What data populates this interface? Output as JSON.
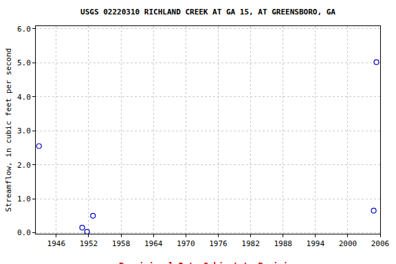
{
  "chart_data": {
    "type": "scatter",
    "title": "USGS 02220310 RICHLAND CREEK AT GA 15, AT GREENSBORO, GA",
    "y_label": "Streamflow, in cubic feet per second",
    "annotations": [
      "---- Provisional Data Subject to Revision ----"
    ],
    "x": [
      1942.8,
      1950.8,
      1951.7,
      1952.8,
      2004.8,
      2005.3
    ],
    "values": [
      2.55,
      0.15,
      0.03,
      0.5,
      0.65,
      5.02
    ],
    "color": "#0000cc",
    "marker": "circle-open",
    "xlim": [
      1942.2,
      2006
    ],
    "xticks": [
      1946,
      1952,
      1958,
      1964,
      1970,
      1976,
      1982,
      1988,
      1994,
      2000,
      2006
    ],
    "ylim": [
      -0.03,
      6.08
    ],
    "yticks": [
      {
        "value": 0,
        "label": "0.0"
      },
      {
        "value": 1,
        "label": "1.0"
      },
      {
        "value": 2,
        "label": "2.0"
      },
      {
        "value": 3,
        "label": "3.0"
      },
      {
        "value": 4,
        "label": "4.0"
      },
      {
        "value": 5,
        "label": "5.0"
      },
      {
        "value": 6,
        "label": "6.0"
      }
    ],
    "grid": true
  }
}
